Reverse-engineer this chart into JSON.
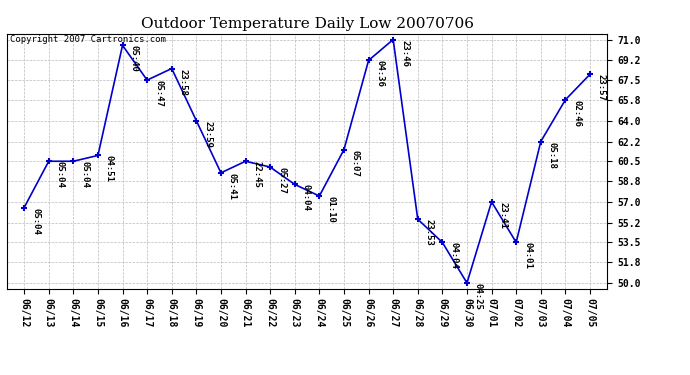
{
  "title": "Outdoor Temperature Daily Low 20070706",
  "copyright": "Copyright 2007 Cartronics.com",
  "x_labels": [
    "06/12",
    "06/13",
    "06/14",
    "06/15",
    "06/16",
    "06/17",
    "06/18",
    "06/19",
    "06/20",
    "06/21",
    "06/22",
    "06/23",
    "06/24",
    "06/25",
    "06/26",
    "06/27",
    "06/28",
    "06/29",
    "06/30",
    "07/01",
    "07/02",
    "07/03",
    "07/04",
    "07/05"
  ],
  "y_values": [
    56.5,
    60.5,
    60.5,
    61.0,
    70.5,
    67.5,
    68.5,
    64.0,
    59.5,
    60.5,
    60.0,
    58.5,
    57.5,
    61.5,
    69.2,
    71.0,
    55.5,
    53.5,
    50.0,
    57.0,
    53.5,
    62.2,
    65.8,
    68.0
  ],
  "point_labels": [
    "05:04",
    "05:04",
    "05:04",
    "04:51",
    "05:40",
    "05:47",
    "23:58",
    "23:59",
    "05:41",
    "22:45",
    "05:27",
    "04:04",
    "01:10",
    "05:07",
    "04:36",
    "23:46",
    "23:53",
    "04:04",
    "04:25",
    "23:41",
    "04:01",
    "05:18",
    "02:46",
    "23:57"
  ],
  "line_color": "#0000cc",
  "marker_color": "#0000cc",
  "background_color": "#ffffff",
  "grid_color": "#bbbbbb",
  "y_min": 50.0,
  "y_max": 71.0,
  "y_ticks": [
    50.0,
    51.8,
    53.5,
    55.2,
    57.0,
    58.8,
    60.5,
    62.2,
    64.0,
    65.8,
    67.5,
    69.2,
    71.0
  ],
  "title_fontsize": 11,
  "copyright_fontsize": 6.5,
  "tick_fontsize": 7,
  "label_fontsize": 6.5
}
